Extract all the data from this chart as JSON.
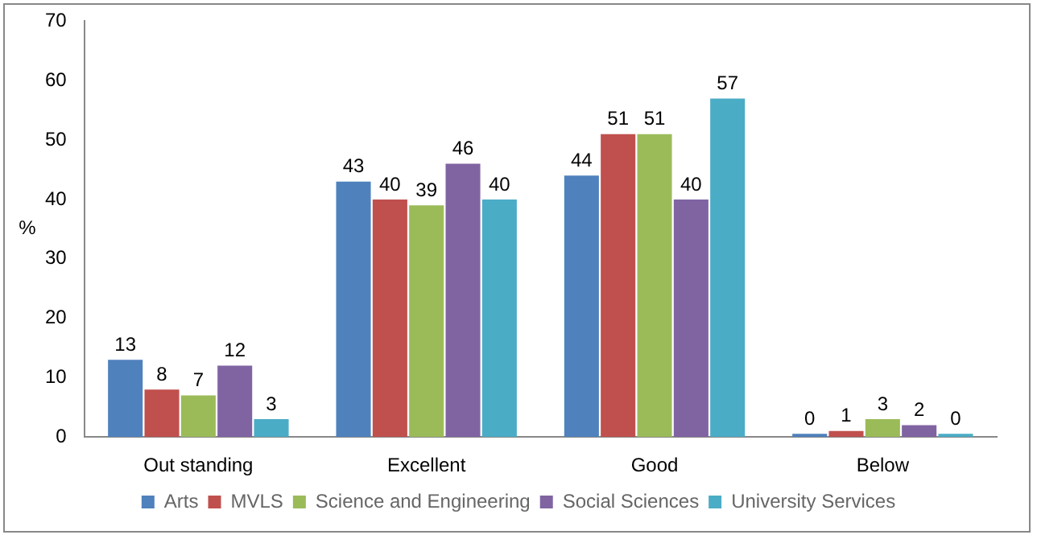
{
  "chart_data": {
    "type": "bar",
    "ylabel": "%",
    "categories": [
      "Out standing",
      "Excellent",
      "Good",
      "Below"
    ],
    "series": [
      {
        "name": "Arts",
        "color": "#4f81bd",
        "values": [
          13,
          43,
          44,
          0
        ]
      },
      {
        "name": "MVLS",
        "color": "#c0504d",
        "values": [
          8,
          40,
          51,
          1
        ]
      },
      {
        "name": "Science and Engineering",
        "color": "#9bbb59",
        "values": [
          7,
          39,
          51,
          3
        ]
      },
      {
        "name": "Social Sciences",
        "color": "#8064a2",
        "values": [
          12,
          46,
          40,
          2
        ]
      },
      {
        "name": "University Services",
        "color": "#4bacc6",
        "values": [
          3,
          40,
          57,
          0
        ]
      }
    ],
    "ylim": [
      0,
      70
    ],
    "yticks": [
      0,
      10,
      20,
      30,
      40,
      50,
      60,
      70
    ],
    "grid": false,
    "legend": "bottom",
    "data_labels": true
  }
}
